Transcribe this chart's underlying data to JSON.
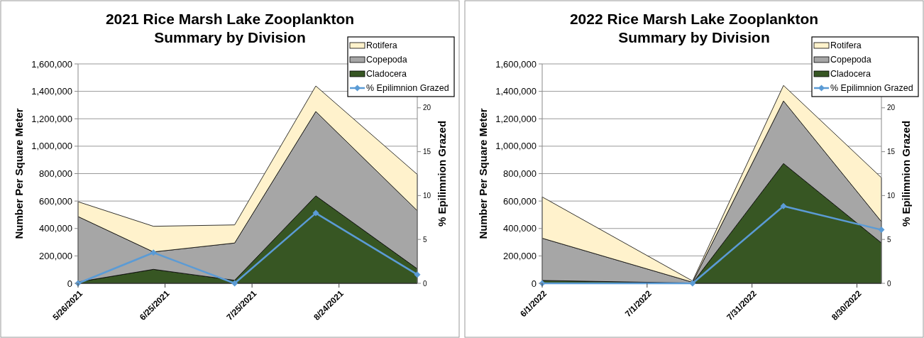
{
  "chart_data": [
    {
      "type": "area",
      "stacked": true,
      "title": "2021 Rice Marsh Lake Zooplankton Summary by Division",
      "ylabel": "Number Per Square Meter",
      "y2label": "% Epilimnion Grazed",
      "x": [
        "2021-05-26",
        "2021-06-21",
        "2021-07-19",
        "2021-08-16",
        "2021-09-20"
      ],
      "xlim": [
        "2021-05-26",
        "2021-09-20"
      ],
      "xticks": [
        {
          "value": "2021-05-26",
          "label": "5/26/2021"
        },
        {
          "value": "2021-06-25",
          "label": "6/25/2021"
        },
        {
          "value": "2021-07-25",
          "label": "7/25/2021"
        },
        {
          "value": "2021-08-24",
          "label": "8/24/2021"
        }
      ],
      "ylim": [
        0,
        1600000
      ],
      "yticks": [
        {
          "value": 0,
          "label": "0"
        },
        {
          "value": 200000,
          "label": "200,000"
        },
        {
          "value": 400000,
          "label": "400,000"
        },
        {
          "value": 600000,
          "label": "600,000"
        },
        {
          "value": 800000,
          "label": "800,000"
        },
        {
          "value": 1000000,
          "label": "1,000,000"
        },
        {
          "value": 1200000,
          "label": "1,200,000"
        },
        {
          "value": 1400000,
          "label": "1,400,000"
        },
        {
          "value": 1600000,
          "label": "1,600,000"
        }
      ],
      "y2lim": [
        0,
        25
      ],
      "y2ticks": [
        0,
        5,
        10,
        15,
        20
      ],
      "grid": "y",
      "legend": "top right",
      "series": [
        {
          "name": "Cladocera",
          "color": "#375623",
          "values": [
            10000,
            102000,
            22000,
            638000,
            106000
          ]
        },
        {
          "name": "Copepoda",
          "color": "#a6a6a6",
          "values": [
            477000,
            127000,
            272000,
            615000,
            424000
          ]
        },
        {
          "name": "Rotifera",
          "color": "#fff2cc",
          "values": [
            108000,
            187000,
            132000,
            186000,
            264000
          ]
        },
        {
          "name": "% Epilimnion Grazed",
          "type": "line",
          "axis": "y2",
          "marker": "diamond",
          "color": "#5b9bd5",
          "values": [
            0,
            3.5,
            0,
            8.0,
            1.0
          ]
        }
      ]
    },
    {
      "type": "area",
      "stacked": true,
      "title": "2022 Rice Marsh Lake Zooplankton Summary by Division",
      "ylabel": "Number Per Square Meter",
      "y2label": "% Epilimnion Grazed",
      "x": [
        "2022-06-01",
        "2022-07-14",
        "2022-08-09",
        "2022-09-06"
      ],
      "xlim": [
        "2022-06-01",
        "2022-09-06"
      ],
      "xticks": [
        {
          "value": "2022-06-01",
          "label": "6/1/2022"
        },
        {
          "value": "2022-07-01",
          "label": "7/1/2022"
        },
        {
          "value": "2022-07-31",
          "label": "7/31/2022"
        },
        {
          "value": "2022-08-30",
          "label": "8/30/2022"
        }
      ],
      "ylim": [
        0,
        1600000
      ],
      "yticks": [
        {
          "value": 0,
          "label": "0"
        },
        {
          "value": 200000,
          "label": "200,000"
        },
        {
          "value": 400000,
          "label": "400,000"
        },
        {
          "value": 600000,
          "label": "600,000"
        },
        {
          "value": 800000,
          "label": "800,000"
        },
        {
          "value": 1000000,
          "label": "1,000,000"
        },
        {
          "value": 1200000,
          "label": "1,200,000"
        },
        {
          "value": 1400000,
          "label": "1,400,000"
        },
        {
          "value": 1600000,
          "label": "1,600,000"
        }
      ],
      "y2lim": [
        0,
        25
      ],
      "y2ticks": [
        0,
        5,
        10,
        15,
        20
      ],
      "grid": "y",
      "legend": "top right",
      "series": [
        {
          "name": "Cladocera",
          "color": "#375623",
          "values": [
            21000,
            2000,
            874000,
            295000
          ]
        },
        {
          "name": "Copepoda",
          "color": "#a6a6a6",
          "values": [
            308000,
            6000,
            456000,
            155000
          ]
        },
        {
          "name": "Rotifera",
          "color": "#fff2cc",
          "values": [
            301000,
            9000,
            113000,
            320000
          ]
        },
        {
          "name": "% Epilimnion Grazed",
          "type": "line",
          "axis": "y2",
          "marker": "diamond",
          "color": "#5b9bd5",
          "values": [
            0,
            0,
            8.8,
            6.1
          ]
        }
      ]
    }
  ]
}
